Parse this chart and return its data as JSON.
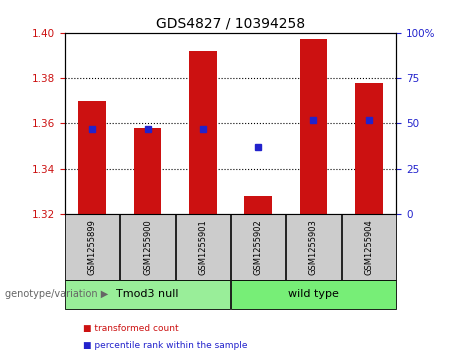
{
  "title": "GDS4827 / 10394258",
  "samples": [
    "GSM1255899",
    "GSM1255900",
    "GSM1255901",
    "GSM1255902",
    "GSM1255903",
    "GSM1255904"
  ],
  "transformed_counts": [
    1.37,
    1.358,
    1.392,
    1.328,
    1.397,
    1.378
  ],
  "percentile_ranks": [
    47,
    47,
    47,
    37,
    52,
    52
  ],
  "ylim_left": [
    1.32,
    1.4
  ],
  "ylim_right": [
    0,
    100
  ],
  "yticks_left": [
    1.32,
    1.34,
    1.36,
    1.38,
    1.4
  ],
  "yticks_right": [
    0,
    25,
    50,
    75,
    100
  ],
  "bar_color": "#cc1111",
  "dot_color": "#2222cc",
  "groups": [
    {
      "label": "Tmod3 null",
      "samples": [
        0,
        1,
        2
      ],
      "color": "#99ee99"
    },
    {
      "label": "wild type",
      "samples": [
        3,
        4,
        5
      ],
      "color": "#77ee77"
    }
  ],
  "group_label": "genotype/variation",
  "legend_items": [
    {
      "label": "transformed count",
      "color": "#cc1111"
    },
    {
      "label": "percentile rank within the sample",
      "color": "#2222cc"
    }
  ],
  "bar_width": 0.5,
  "baseline": 1.32,
  "percentile_scale_low": 1.32,
  "percentile_scale_high": 1.4,
  "tick_label_color_left": "#cc1111",
  "tick_label_color_right": "#2222cc",
  "background_color": "#ffffff",
  "plot_bg_color": "#ffffff",
  "xlabel_area_color": "#cccccc",
  "dotted_gridlines": [
    1.34,
    1.36,
    1.38
  ]
}
